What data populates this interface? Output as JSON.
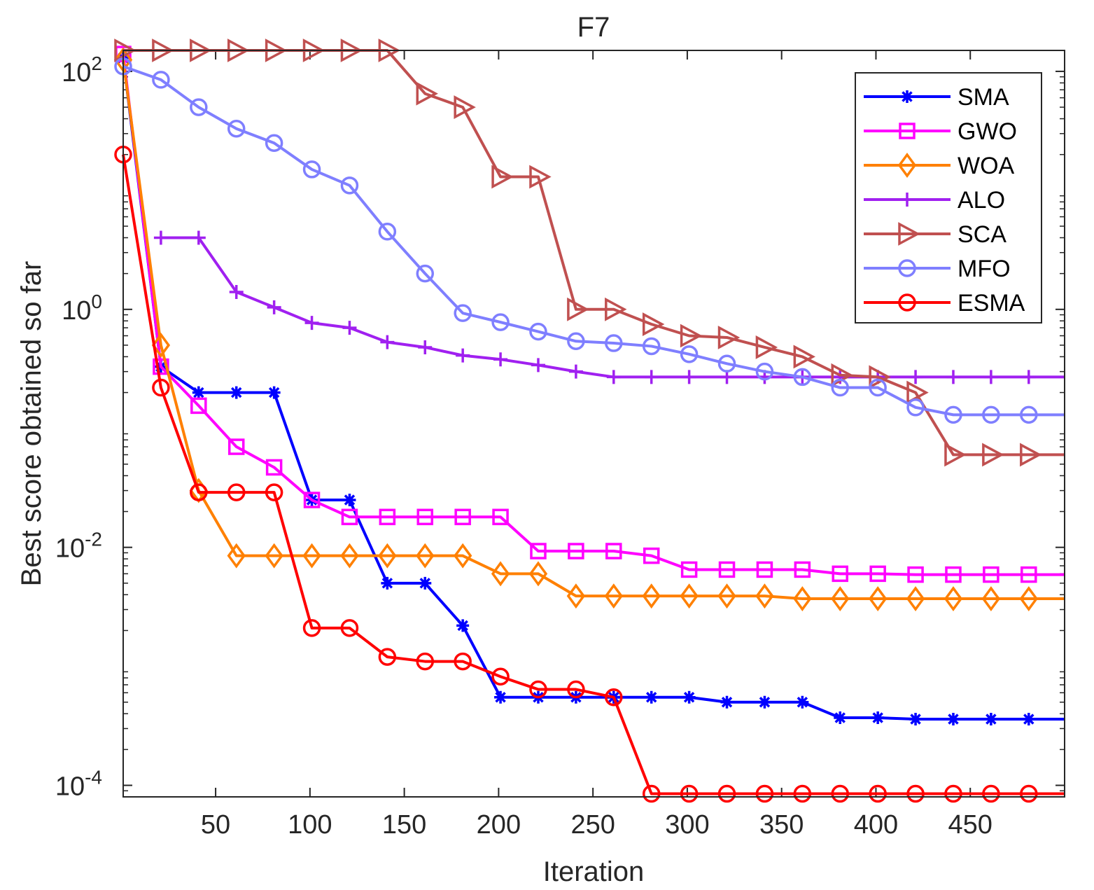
{
  "chart_data": {
    "type": "line",
    "title": "F7",
    "xlabel": "Iteration",
    "ylabel": "Best score obtained so far",
    "yscale": "log",
    "xlim": [
      1,
      500
    ],
    "ylim": [
      8e-05,
      150
    ],
    "xticks": [
      50,
      100,
      150,
      200,
      250,
      300,
      350,
      400,
      450
    ],
    "yticks": [
      {
        "value": 0.0001,
        "base": "10",
        "exp": "-4"
      },
      {
        "value": 0.01,
        "base": "10",
        "exp": "-2"
      },
      {
        "value": 1,
        "base": "10",
        "exp": "0"
      },
      {
        "value": 100,
        "base": "10",
        "exp": "2"
      }
    ],
    "legend_position": "top-right",
    "x": [
      1,
      21,
      41,
      61,
      81,
      101,
      121,
      141,
      161,
      181,
      201,
      221,
      241,
      261,
      281,
      301,
      321,
      341,
      361,
      381,
      401,
      421,
      441,
      461,
      481
    ],
    "series": [
      {
        "name": "SMA",
        "color": "#0000ff",
        "marker": "star",
        "values": [
          130,
          0.33,
          0.2,
          0.2,
          0.2,
          0.025,
          0.025,
          0.005,
          0.005,
          0.0022,
          0.00055,
          0.00055,
          0.00055,
          0.00055,
          0.00055,
          0.00055,
          0.0005,
          0.0005,
          0.0005,
          0.00037,
          0.00037,
          0.00036,
          0.00036,
          0.00036,
          0.00036
        ]
      },
      {
        "name": "GWO",
        "color": "#ff00ff",
        "marker": "square",
        "values": [
          140,
          0.33,
          0.155,
          0.07,
          0.047,
          0.025,
          0.018,
          0.018,
          0.018,
          0.018,
          0.018,
          0.0093,
          0.0093,
          0.0093,
          0.0085,
          0.0065,
          0.0065,
          0.0065,
          0.0065,
          0.006,
          0.006,
          0.0059,
          0.0059,
          0.0059,
          0.0059
        ]
      },
      {
        "name": "WOA",
        "color": "#ff8000",
        "marker": "diamond",
        "values": [
          125,
          0.5,
          0.03,
          0.0085,
          0.0085,
          0.0085,
          0.0085,
          0.0085,
          0.0085,
          0.0085,
          0.006,
          0.006,
          0.0039,
          0.0039,
          0.0039,
          0.0039,
          0.0039,
          0.0039,
          0.0037,
          0.0037,
          0.0037,
          0.0037,
          0.0037,
          0.0037,
          0.0037
        ]
      },
      {
        "name": "ALO",
        "color": "#a020f0",
        "marker": "plus",
        "values": [
          null,
          4,
          4,
          1.4,
          1.04,
          0.77,
          0.7,
          0.53,
          0.48,
          0.41,
          0.38,
          0.34,
          0.3,
          0.27,
          0.27,
          0.27,
          0.27,
          0.27,
          0.27,
          0.27,
          0.27,
          0.27,
          0.27,
          0.27,
          0.27
        ]
      },
      {
        "name": "SCA",
        "color": "#c05050",
        "marker": "triangle-right",
        "values": [
          150,
          150,
          150,
          150,
          150,
          150,
          150,
          150,
          65,
          50,
          13,
          13,
          1,
          1,
          0.75,
          0.6,
          0.58,
          0.48,
          0.4,
          0.28,
          0.27,
          0.2,
          0.06,
          0.06,
          0.06
        ]
      },
      {
        "name": "MFO",
        "color": "#7f7fff",
        "marker": "circle",
        "values": [
          110,
          85,
          50,
          33,
          25,
          15,
          11,
          4.5,
          2,
          0.93,
          0.78,
          0.65,
          0.54,
          0.52,
          0.49,
          0.42,
          0.35,
          0.3,
          0.27,
          0.22,
          0.22,
          0.15,
          0.13,
          0.13,
          0.13
        ]
      },
      {
        "name": "ESMA",
        "color": "#ff0000",
        "marker": "circle",
        "values": [
          20,
          0.22,
          0.029,
          0.029,
          0.029,
          0.0021,
          0.0021,
          0.0012,
          0.0011,
          0.0011,
          0.00082,
          0.00064,
          0.00064,
          0.00055,
          8.5e-05,
          8.5e-05,
          8.5e-05,
          8.5e-05,
          8.5e-05,
          8.5e-05,
          8.5e-05,
          8.5e-05,
          8.5e-05,
          8.5e-05,
          8.5e-05
        ]
      }
    ]
  }
}
